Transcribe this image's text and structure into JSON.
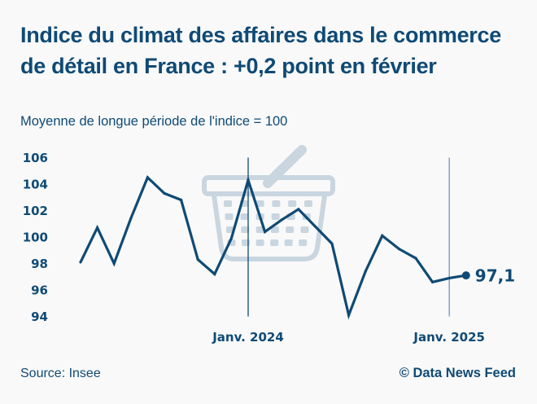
{
  "header": {
    "title": "Indice du climat des affaires dans le commerce de détail en France : +0,2 point en février",
    "subtitle": "Moyenne de longue période de l'indice = 100"
  },
  "footer": {
    "source": "Source: Insee",
    "credit": "© Data News Feed"
  },
  "colors": {
    "line": "#0f4a75",
    "text": "#0f4a75",
    "marker_2025": "#6f96b8",
    "icon": "#c9d6e0",
    "background": "#f9f9f9"
  },
  "icon": "shopping-basket-icon",
  "chart_data": {
    "type": "line",
    "title": "Indice du climat des affaires dans le commerce de détail en France : +0,2 point en février",
    "subtitle": "Moyenne de longue période de l'indice = 100",
    "xlabel": "",
    "ylabel": "",
    "x": [
      "2023-03",
      "2023-04",
      "2023-05",
      "2023-06",
      "2023-07",
      "2023-08",
      "2023-09",
      "2023-10",
      "2023-11",
      "2023-12",
      "2024-01",
      "2024-02",
      "2024-03",
      "2024-04",
      "2024-05",
      "2024-06",
      "2024-07",
      "2024-08",
      "2024-09",
      "2024-10",
      "2024-11",
      "2024-12",
      "2025-01",
      "2025-02"
    ],
    "series": [
      {
        "name": "Indice du climat des affaires",
        "values": [
          98.1,
          100.7,
          98.0,
          101.4,
          104.5,
          103.3,
          102.8,
          98.3,
          97.2,
          99.9,
          104.3,
          100.4,
          101.3,
          102.1,
          100.8,
          99.5,
          94.1,
          97.4,
          100.1,
          99.1,
          98.4,
          96.6,
          96.9,
          97.1
        ]
      }
    ],
    "ylim": [
      94,
      106
    ],
    "yticks": [
      106,
      104,
      102,
      100,
      98,
      96,
      94
    ],
    "xtick_labels": [
      {
        "x": "2024-01",
        "label": "Janv. 2024"
      },
      {
        "x": "2025-01",
        "label": "Janv. 2025"
      }
    ],
    "reference_lines": [
      "2024-01",
      "2025-01"
    ],
    "end_label": "97,1",
    "grid": false,
    "legend": "none"
  }
}
